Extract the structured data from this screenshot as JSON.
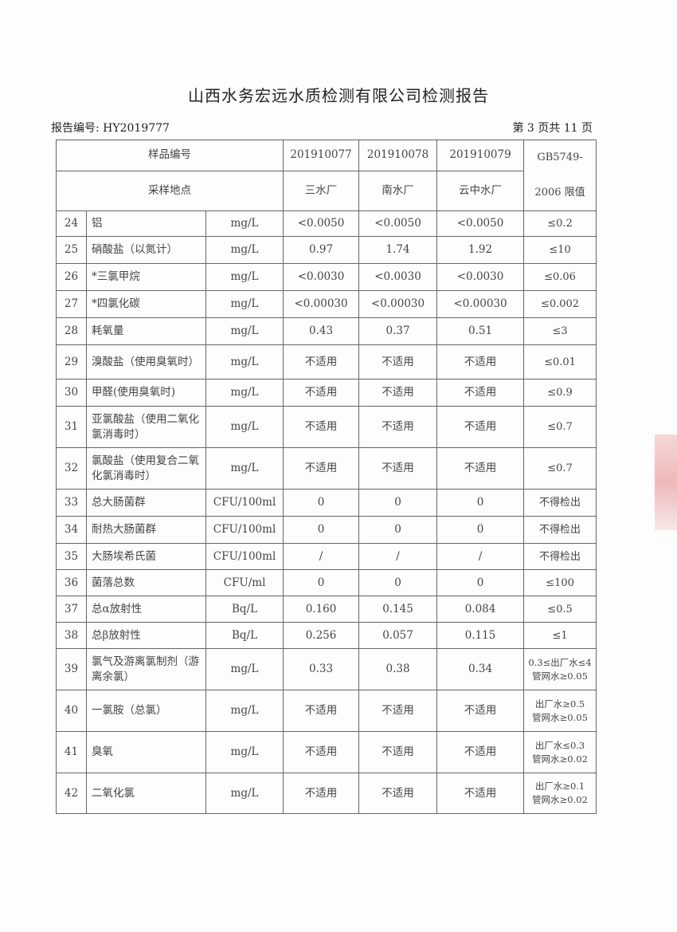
{
  "title": "山西水务宏远水质检测有限公司检测报告",
  "report_no": "报告编号: HY2019777",
  "page_no": "第 3 页共 11 页",
  "header": {
    "sample_no_label": "样品编号",
    "site_label": "采样地点",
    "samples": [
      "201910077",
      "201910078",
      "201910079"
    ],
    "sites": [
      "三水厂",
      "南水厂",
      "云中水厂"
    ],
    "limit_label_1": "GB5749-",
    "limit_label_2": "2006 限值"
  },
  "rows": [
    {
      "no": "24",
      "name": "铝",
      "unit": "mg/L",
      "v": [
        "<0.0050",
        "<0.0050",
        "<0.0050"
      ],
      "limit": "≤0.2"
    },
    {
      "no": "25",
      "name": "硝酸盐（以氮计）",
      "unit": "mg/L",
      "v": [
        "0.97",
        "1.74",
        "1.92"
      ],
      "limit": "≤10"
    },
    {
      "no": "26",
      "name": "*三氯甲烷",
      "unit": "mg/L",
      "v": [
        "<0.0030",
        "<0.0030",
        "<0.0030"
      ],
      "limit": "≤0.06"
    },
    {
      "no": "27",
      "name": "*四氯化碳",
      "unit": "mg/L",
      "v": [
        "<0.00030",
        "<0.00030",
        "<0.00030"
      ],
      "limit": "≤0.002"
    },
    {
      "no": "28",
      "name": "耗氧量",
      "unit": "mg/L",
      "v": [
        "0.43",
        "0.37",
        "0.51"
      ],
      "limit": "≤3"
    },
    {
      "no": "29",
      "name": "溴酸盐（使用臭氧时）",
      "unit": "mg/L",
      "v": [
        "不适用",
        "不适用",
        "不适用"
      ],
      "limit": "≤0.01"
    },
    {
      "no": "30",
      "name": "甲醛(使用臭氧时)",
      "unit": "mg/L",
      "v": [
        "不适用",
        "不适用",
        "不适用"
      ],
      "limit": "≤0.9"
    },
    {
      "no": "31",
      "name": "亚氯酸盐（使用二氧化氯消毒时）",
      "unit": "mg/L",
      "v": [
        "不适用",
        "不适用",
        "不适用"
      ],
      "limit": "≤0.7"
    },
    {
      "no": "32",
      "name": "氯酸盐（使用复合二氧化氯消毒时）",
      "unit": "mg/L",
      "v": [
        "不适用",
        "不适用",
        "不适用"
      ],
      "limit": "≤0.7"
    },
    {
      "no": "33",
      "name": "总大肠菌群",
      "unit": "CFU/100ml",
      "v": [
        "0",
        "0",
        "0"
      ],
      "limit": "不得检出"
    },
    {
      "no": "34",
      "name": "耐热大肠菌群",
      "unit": "CFU/100ml",
      "v": [
        "0",
        "0",
        "0"
      ],
      "limit": "不得检出"
    },
    {
      "no": "35",
      "name": "大肠埃希氏菌",
      "unit": "CFU/100ml",
      "v": [
        "/",
        "/",
        "/"
      ],
      "limit": "不得检出"
    },
    {
      "no": "36",
      "name": "菌落总数",
      "unit": "CFU/ml",
      "v": [
        "0",
        "0",
        "0"
      ],
      "limit": "≤100"
    },
    {
      "no": "37",
      "name": "总α放射性",
      "unit": "Bq/L",
      "v": [
        "0.160",
        "0.145",
        "0.084"
      ],
      "limit": "≤0.5"
    },
    {
      "no": "38",
      "name": "总β放射性",
      "unit": "Bq/L",
      "v": [
        "0.256",
        "0.057",
        "0.115"
      ],
      "limit": "≤1"
    },
    {
      "no": "39",
      "name": "氯气及游离氯制剂（游离余氯）",
      "unit": "mg/L",
      "v": [
        "0.33",
        "0.38",
        "0.34"
      ],
      "limit": "0.3≤出厂水≤4\n管网水≥0.05"
    },
    {
      "no": "40",
      "name": "一氯胺（总氯）",
      "unit": "mg/L",
      "v": [
        "不适用",
        "不适用",
        "不适用"
      ],
      "limit": "出厂水≥0.5\n管网水≥0.05"
    },
    {
      "no": "41",
      "name": "臭氧",
      "unit": "mg/L",
      "v": [
        "不适用",
        "不适用",
        "不适用"
      ],
      "limit": "出厂水≤0.3\n管网水≥0.02"
    },
    {
      "no": "42",
      "name": "二氧化氯",
      "unit": "mg/L",
      "v": [
        "不适用",
        "不适用",
        "不适用"
      ],
      "limit": "出厂水≥0.1\n管网水≥0.02"
    }
  ]
}
